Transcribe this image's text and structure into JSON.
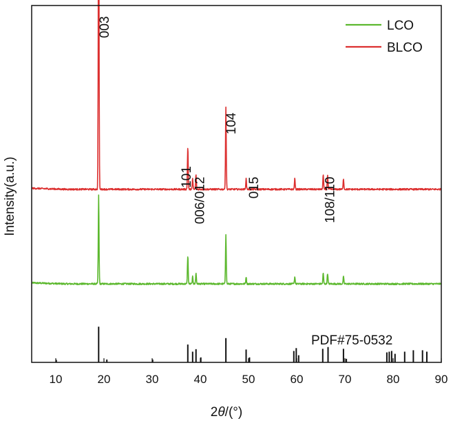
{
  "chart_data": {
    "type": "line",
    "title": "",
    "xlabel_prefix": "2",
    "xlabel_italic": "θ",
    "xlabel_suffix": "/(°)",
    "ylabel": "Intensity(a.u.)",
    "xlim": [
      5,
      90
    ],
    "xticks": [
      10,
      20,
      30,
      40,
      50,
      60,
      70,
      80,
      90
    ],
    "yticks_shown": false,
    "legend_position": "top-right",
    "series": [
      {
        "name": "LCO",
        "color": "#5cb82e",
        "baseline": 0.22,
        "peaks": [
          {
            "x": 18.9,
            "h": 0.25
          },
          {
            "x": 37.4,
            "h": 0.08
          },
          {
            "x": 38.4,
            "h": 0.02
          },
          {
            "x": 39.1,
            "h": 0.03
          },
          {
            "x": 45.3,
            "h": 0.14
          },
          {
            "x": 49.5,
            "h": 0.02
          },
          {
            "x": 59.6,
            "h": 0.02
          },
          {
            "x": 65.5,
            "h": 0.03
          },
          {
            "x": 66.4,
            "h": 0.03
          },
          {
            "x": 69.7,
            "h": 0.02
          }
        ]
      },
      {
        "name": "BLCO",
        "color": "#dc2f2f",
        "baseline": 0.485,
        "peaks": [
          {
            "x": 18.9,
            "h": 1.0
          },
          {
            "x": 37.4,
            "h": 0.12
          },
          {
            "x": 38.4,
            "h": 0.03
          },
          {
            "x": 39.1,
            "h": 0.04
          },
          {
            "x": 45.3,
            "h": 0.23
          },
          {
            "x": 49.5,
            "h": 0.03
          },
          {
            "x": 59.6,
            "h": 0.03
          },
          {
            "x": 65.5,
            "h": 0.04
          },
          {
            "x": 66.4,
            "h": 0.04
          },
          {
            "x": 69.7,
            "h": 0.03
          }
        ]
      }
    ],
    "reference": {
      "label": "PDF#75-0532",
      "color": "#111111",
      "lines": [
        {
          "x": 10.1,
          "h": 0.07
        },
        {
          "x": 18.9,
          "h": 1.0
        },
        {
          "x": 20.6,
          "h": 0.08
        },
        {
          "x": 30.1,
          "h": 0.08
        },
        {
          "x": 37.4,
          "h": 0.5
        },
        {
          "x": 38.4,
          "h": 0.3
        },
        {
          "x": 39.1,
          "h": 0.37
        },
        {
          "x": 40.1,
          "h": 0.14
        },
        {
          "x": 45.3,
          "h": 0.68
        },
        {
          "x": 49.5,
          "h": 0.36
        },
        {
          "x": 50.2,
          "h": 0.14
        },
        {
          "x": 59.4,
          "h": 0.32
        },
        {
          "x": 59.9,
          "h": 0.4
        },
        {
          "x": 60.4,
          "h": 0.2
        },
        {
          "x": 65.4,
          "h": 0.38
        },
        {
          "x": 66.5,
          "h": 0.43
        },
        {
          "x": 69.7,
          "h": 0.38
        },
        {
          "x": 70.3,
          "h": 0.1
        },
        {
          "x": 78.7,
          "h": 0.28
        },
        {
          "x": 79.2,
          "h": 0.3
        },
        {
          "x": 79.7,
          "h": 0.32
        },
        {
          "x": 80.4,
          "h": 0.24
        },
        {
          "x": 82.4,
          "h": 0.3
        },
        {
          "x": 84.2,
          "h": 0.34
        },
        {
          "x": 86.1,
          "h": 0.34
        },
        {
          "x": 87.0,
          "h": 0.3
        }
      ]
    },
    "annotations": [
      {
        "text": "003",
        "x": 20.0,
        "y_rel": 0.97
      },
      {
        "text": "101",
        "x": 37.0,
        "y_rel": 0.55
      },
      {
        "text": "006/012",
        "x": 39.8,
        "y_rel": 0.52
      },
      {
        "text": "104",
        "x": 46.3,
        "y_rel": 0.7
      },
      {
        "text": "015",
        "x": 51.0,
        "y_rel": 0.52
      },
      {
        "text": "108/110",
        "x": 66.8,
        "y_rel": 0.52
      }
    ]
  }
}
